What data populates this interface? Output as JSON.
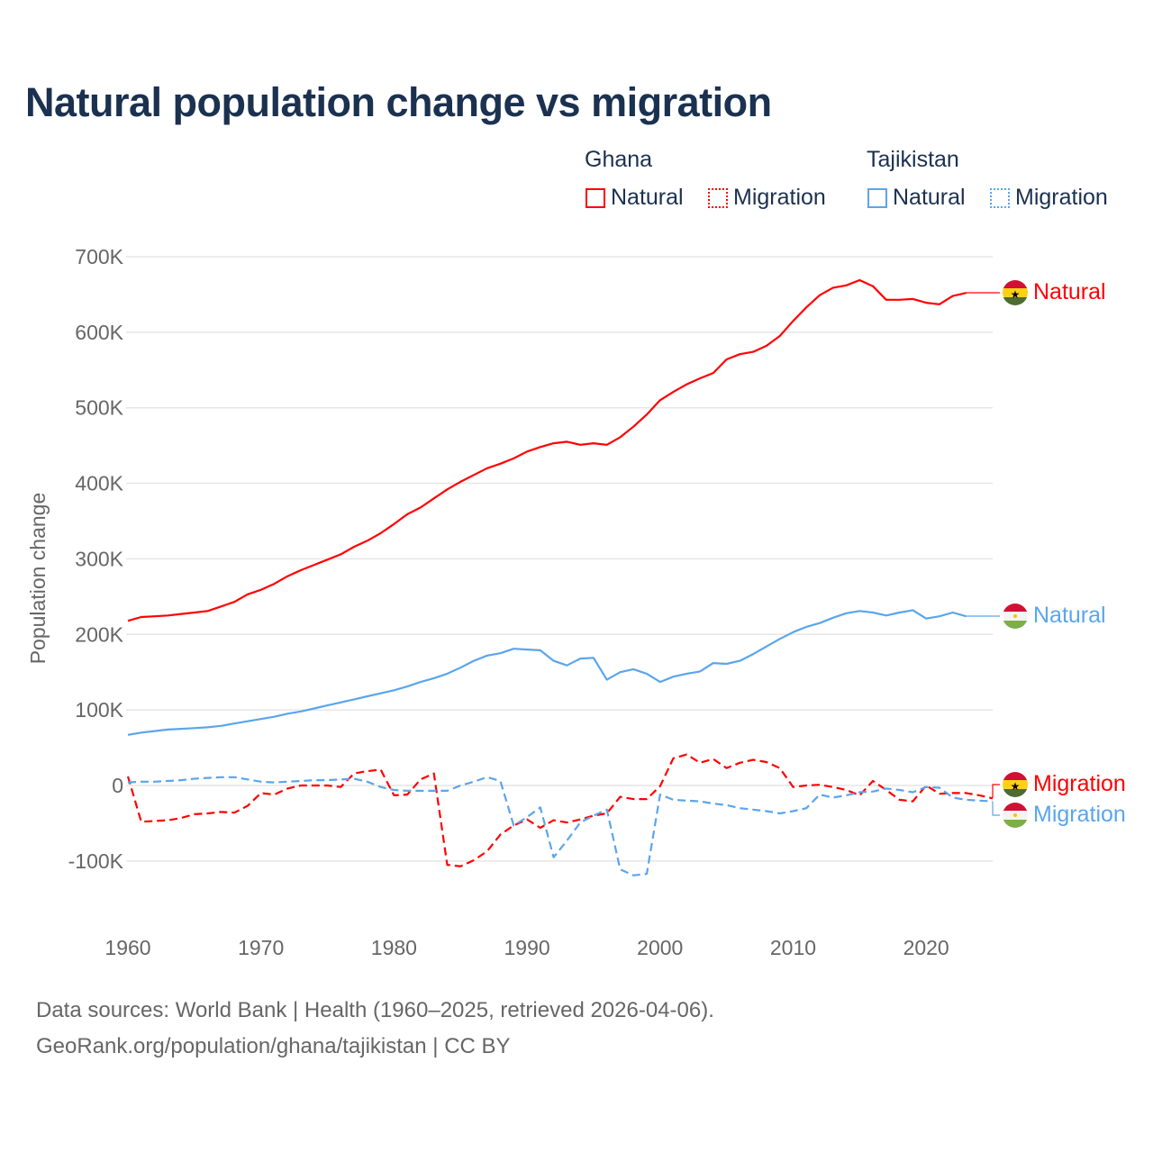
{
  "chart_data": {
    "type": "line",
    "title": "Natural population change vs migration",
    "ylabel": "Population change",
    "xlabel": "",
    "ylim": [
      -140000,
      720000
    ],
    "xlim": [
      1960,
      2025
    ],
    "grid": true,
    "y_ticks": [
      {
        "value": 700000,
        "label": "700K"
      },
      {
        "value": 600000,
        "label": "600K"
      },
      {
        "value": 500000,
        "label": "500K"
      },
      {
        "value": 400000,
        "label": "400K"
      },
      {
        "value": 300000,
        "label": "300K"
      },
      {
        "value": 200000,
        "label": "200K"
      },
      {
        "value": 100000,
        "label": "100K"
      },
      {
        "value": 0,
        "label": "0"
      },
      {
        "value": -100000,
        "label": "-100K"
      }
    ],
    "x_ticks": [
      {
        "value": 1960,
        "label": "1960"
      },
      {
        "value": 1970,
        "label": "1970"
      },
      {
        "value": 1980,
        "label": "1980"
      },
      {
        "value": 1990,
        "label": "1990"
      },
      {
        "value": 2000,
        "label": "2000"
      },
      {
        "value": 2010,
        "label": "2010"
      },
      {
        "value": 2020,
        "label": "2020"
      }
    ],
    "legend": {
      "placement": "top-right",
      "groups": [
        {
          "name": "Ghana",
          "items": [
            "Natural",
            "Migration"
          ]
        },
        {
          "name": "Tajikistan",
          "items": [
            "Natural",
            "Migration"
          ]
        }
      ]
    },
    "series": [
      {
        "name": "Natural",
        "country": "Ghana",
        "color": "#ff0000",
        "dash": "solid",
        "start_year": 1960,
        "values_k": [
          218,
          223,
          224,
          225,
          227,
          229,
          231,
          237,
          243,
          253,
          259,
          267,
          277,
          285,
          292,
          299,
          306,
          316,
          324,
          334,
          346,
          359,
          368,
          380,
          392,
          402,
          411,
          420,
          426,
          433,
          442,
          448,
          453,
          455,
          451,
          453,
          451,
          461,
          475,
          491,
          510,
          521,
          531,
          539,
          546,
          564,
          571,
          574,
          582,
          595,
          615,
          633,
          649,
          659,
          662,
          669,
          661,
          643,
          643,
          644,
          639,
          637,
          648,
          652
        ]
      },
      {
        "name": "Natural",
        "country": "Tajikistan",
        "color": "#5aa5ec",
        "dash": "solid",
        "start_year": 1960,
        "values_k": [
          67,
          70,
          72,
          74,
          75,
          76,
          77,
          79,
          82,
          85,
          88,
          91,
          95,
          98,
          102,
          106,
          110,
          114,
          118,
          122,
          126,
          131,
          137,
          142,
          148,
          156,
          165,
          172,
          175,
          181,
          180,
          179,
          165,
          159,
          168,
          169,
          140,
          150,
          154,
          148,
          137,
          144,
          148,
          151,
          162,
          161,
          165,
          174,
          184,
          194,
          203,
          210,
          215,
          222,
          228,
          231,
          229,
          225,
          229,
          232,
          221,
          224,
          229,
          224
        ]
      },
      {
        "name": "Migration",
        "country": "Ghana",
        "color": "#ff0000",
        "dash": "dashed",
        "start_year": 1960,
        "values_k": [
          12,
          -48,
          -47,
          -46,
          -43,
          -38,
          -37,
          -35,
          -36,
          -27,
          -10,
          -12,
          -4,
          0,
          0,
          0,
          -2,
          16,
          19,
          21,
          -13,
          -12,
          8,
          16,
          -105,
          -107,
          -99,
          -87,
          -65,
          -53,
          -45,
          -56,
          -46,
          -49,
          -45,
          -40,
          -37,
          -15,
          -18,
          -18,
          -1,
          36,
          41,
          30,
          35,
          23,
          30,
          34,
          31,
          23,
          -2,
          0,
          1,
          -2,
          -6,
          -13,
          6,
          -6,
          -19,
          -21,
          0,
          -11,
          -10,
          -10,
          -13,
          -17
        ]
      },
      {
        "name": "Migration",
        "country": "Tajikistan",
        "color": "#5aa5ec",
        "dash": "dashed",
        "start_year": 1960,
        "values_k": [
          4,
          5,
          5,
          6,
          7,
          9,
          10,
          11,
          11,
          8,
          5,
          4,
          5,
          6,
          7,
          7,
          8,
          9,
          5,
          -2,
          -6,
          -7,
          -7,
          -7,
          -7,
          0,
          5,
          11,
          6,
          -53,
          -42,
          -29,
          -95,
          -73,
          -49,
          -40,
          -32,
          -111,
          -119,
          -117,
          -12,
          -19,
          -20,
          -21,
          -24,
          -26,
          -30,
          -32,
          -34,
          -37,
          -34,
          -30,
          -12,
          -16,
          -13,
          -9,
          -8,
          -4,
          -6,
          -9,
          -2,
          -3,
          -16,
          -19,
          -20,
          -21
        ]
      }
    ]
  },
  "legend": {
    "ghana": "Ghana",
    "tajikistan": "Tajikistan",
    "natural": "Natural",
    "migration": "Migration"
  },
  "colors": {
    "ghana": "#ff0000",
    "tajikistan": "#5aa5ec",
    "title": "#1b3150"
  },
  "end_labels": {
    "ghana_natural": "Natural",
    "tajikistan_natural": "Natural",
    "ghana_migration": "Migration",
    "tajikistan_migration": "Migration"
  },
  "footer": {
    "source": "Data sources: World Bank | Health (1960–2025, retrieved 2026-04-06).",
    "credit": "GeoRank.org/population/ghana/tajikistan | CC BY"
  }
}
